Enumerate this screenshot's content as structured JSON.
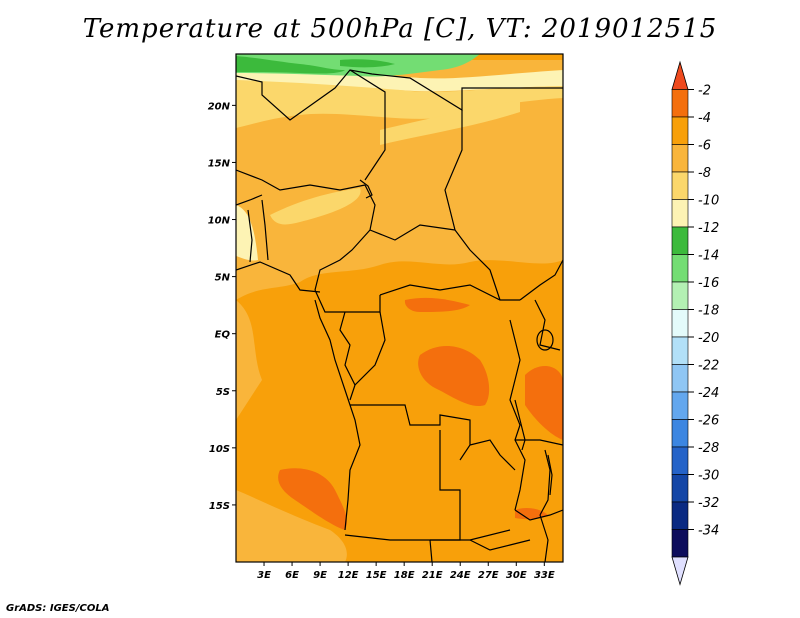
{
  "chart_data": {
    "type": "heatmap",
    "title": "Temperature at 500hPa [C], VT: 2019012515",
    "lat_ticks": [
      "20N",
      "15N",
      "10N",
      "5N",
      "EQ",
      "5S",
      "10S",
      "15S"
    ],
    "lon_ticks": [
      "3E",
      "6E",
      "9E",
      "12E",
      "15E",
      "18E",
      "21E",
      "24E",
      "27E",
      "30E",
      "33E"
    ],
    "lat_range": [
      -20,
      24.5
    ],
    "lon_range": [
      0,
      35
    ],
    "colorbar": {
      "labels": [
        "-2",
        "-4",
        "-6",
        "-8",
        "-10",
        "-12",
        "-14",
        "-16",
        "-18",
        "-20",
        "-22",
        "-24",
        "-26",
        "-28",
        "-30",
        "-32",
        "-34"
      ],
      "colors": [
        "#ef4a1e",
        "#f46f0d",
        "#f8a00a",
        "#f9b53b",
        "#fbd76b",
        "#fdf3b4",
        "#3cba3c",
        "#73dd73",
        "#b3f0b3",
        "#e4fbfb",
        "#b2e0f8",
        "#8fc6f4",
        "#63a7ee",
        "#3c86e1",
        "#2563c8",
        "#1446a6",
        "#0a2a82",
        "#0d0d5c",
        "#e0e0ff"
      ]
    }
  },
  "credit": "GrADS: IGES/COLA"
}
